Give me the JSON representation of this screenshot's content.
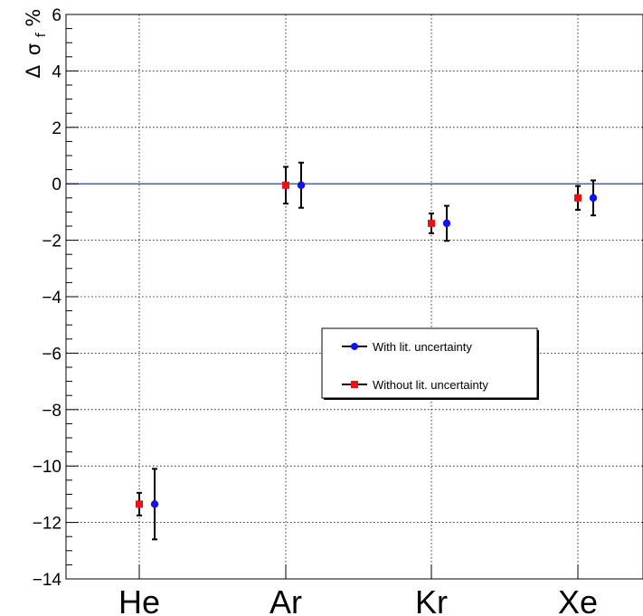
{
  "chart_data": {
    "type": "scatter",
    "title": "",
    "xlabel": "",
    "ylabel": {
      "delta": "Δ",
      "sigma": "σ",
      "subscript": "f",
      "percent": "%"
    },
    "categories": [
      "He",
      "Ar",
      "Kr",
      "Xe"
    ],
    "ylim": [
      -14,
      6
    ],
    "yticks": [
      -14,
      -12,
      -10,
      -8,
      -6,
      -4,
      -2,
      0,
      2,
      4,
      6
    ],
    "ytick_labels": [
      "−14",
      "−12",
      "−10",
      "−8",
      "−6",
      "−4",
      "−2",
      "0",
      "2",
      "4",
      "6"
    ],
    "grid": true,
    "reference_line": {
      "y": 0,
      "color": "#1f2fbf"
    },
    "legend": {
      "placement": "center-right"
    },
    "series": [
      {
        "name": "With lit. uncertainty",
        "marker": "circle",
        "color": "#1010f0",
        "values": [
          -11.35,
          -0.05,
          -1.4,
          -0.5
        ],
        "err_low": [
          1.25,
          0.8,
          0.62,
          0.62
        ],
        "err_high": [
          1.25,
          0.8,
          0.62,
          0.62
        ]
      },
      {
        "name": "Without lit. uncertainty",
        "marker": "square",
        "color": "#ee1111",
        "values": [
          -11.35,
          -0.05,
          -1.4,
          -0.5
        ],
        "err_low": [
          0.4,
          0.65,
          0.35,
          0.42
        ],
        "err_high": [
          0.4,
          0.65,
          0.35,
          0.42
        ]
      }
    ]
  }
}
